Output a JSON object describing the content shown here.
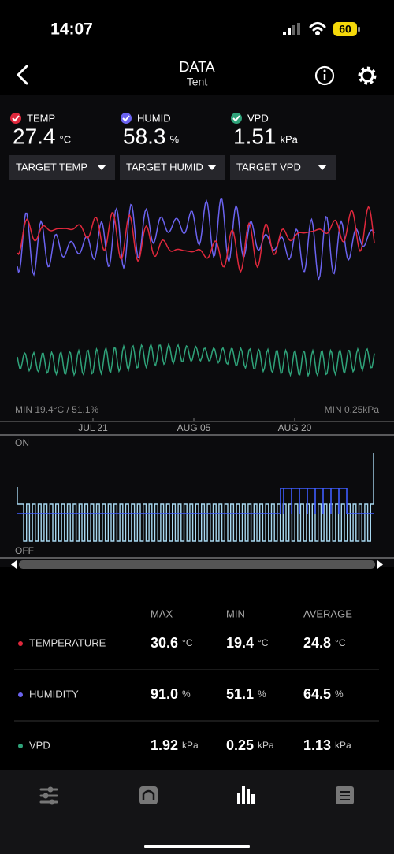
{
  "status_bar": {
    "time": "14:07",
    "battery": "60"
  },
  "header": {
    "title": "DATA",
    "subtitle": "Tent"
  },
  "readings": [
    {
      "label": "TEMP",
      "value": "27.4",
      "unit": "°C",
      "color": "#e0283c"
    },
    {
      "label": "HUMID",
      "value": "58.3",
      "unit": "%",
      "color": "#6b63f0"
    },
    {
      "label": "VPD",
      "value": "1.51",
      "unit": "kPa",
      "color": "#2fa37a"
    }
  ],
  "targets": [
    "TARGET TEMP",
    "TARGET HUMID",
    "TARGET VPD"
  ],
  "chart": {
    "min_left": "MIN 19.4°C / 51.1%",
    "min_right": "MIN 0.25kPa",
    "dates": [
      "JUL 21",
      "AUG 05",
      "AUG 20"
    ],
    "on_label": "ON",
    "off_label": "OFF"
  },
  "table": {
    "columns": [
      "MAX",
      "MIN",
      "AVERAGE"
    ],
    "rows": [
      {
        "name": "TEMPERATURE",
        "color": "#e0283c",
        "cells": [
          {
            "value": "30.6",
            "unit": "°C"
          },
          {
            "value": "19.4",
            "unit": "°C"
          },
          {
            "value": "24.8",
            "unit": "°C"
          }
        ]
      },
      {
        "name": "HUMIDITY",
        "color": "#6b63f0",
        "cells": [
          {
            "value": "91.0",
            "unit": "%"
          },
          {
            "value": "51.1",
            "unit": "%"
          },
          {
            "value": "64.5",
            "unit": "%"
          }
        ]
      },
      {
        "name": "VPD",
        "color": "#2fa37a",
        "cells": [
          {
            "value": "1.92",
            "unit": "kPa"
          },
          {
            "value": "0.25",
            "unit": "kPa"
          },
          {
            "value": "1.13",
            "unit": "kPa"
          }
        ]
      }
    ]
  }
}
